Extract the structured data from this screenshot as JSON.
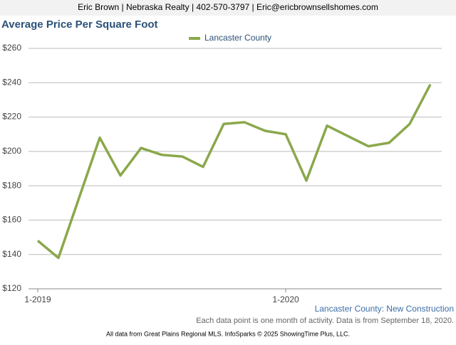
{
  "header": "Eric Brown | Nebraska Realty | 402-570-3797 | Eric@ericbrownsellshomes.com",
  "chart_data": {
    "type": "line",
    "title": "Average Price Per Square Foot",
    "categories": [
      "1-2019",
      null,
      null,
      null,
      null,
      null,
      null,
      null,
      null,
      null,
      null,
      null,
      "1-2020",
      null,
      null,
      null,
      null,
      null,
      null,
      null
    ],
    "series": [
      {
        "name": "Lancaster County",
        "color": "#8aa84b",
        "values": [
          148,
          138,
          173,
          208,
          186,
          202,
          198,
          197,
          191,
          216,
          217,
          212,
          210,
          183,
          215,
          209,
          203,
          205,
          216,
          239
        ]
      }
    ],
    "ylim": [
      120,
      260
    ],
    "yticks": [
      {
        "value": 120,
        "label": "$120"
      },
      {
        "value": 140,
        "label": "$140"
      },
      {
        "value": 160,
        "label": "$160"
      },
      {
        "value": 180,
        "label": "$180"
      },
      {
        "value": 200,
        "label": "$200"
      },
      {
        "value": 220,
        "label": "$220"
      },
      {
        "value": 240,
        "label": "$240"
      },
      {
        "value": 260,
        "label": "$260"
      }
    ],
    "grid": true,
    "subtitle": "Lancaster County: New Construction",
    "note": "Each data point is one month of activity. Data is from September 18, 2020."
  },
  "footer": "All data from Great Plains Regional MLS. InfoSparks © 2025 ShowingTime Plus, LLC."
}
